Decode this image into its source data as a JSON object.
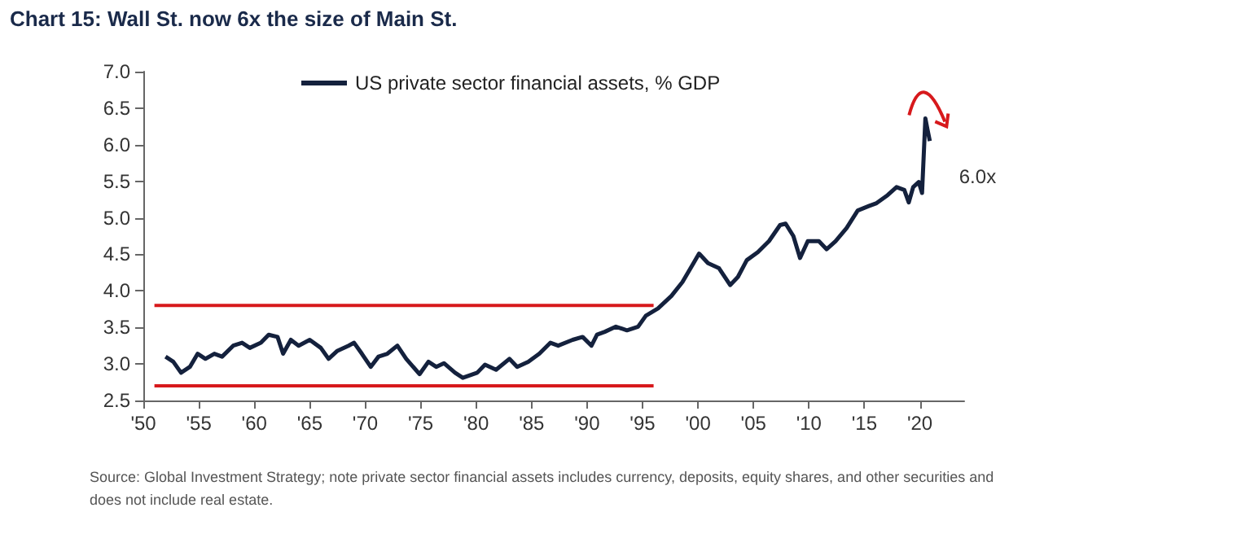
{
  "chart_data": {
    "type": "line",
    "title": "Chart 15: Wall St. now 6x the size of Main St.",
    "legend": "top",
    "grid": false,
    "marker": "none",
    "line_style": "solid",
    "xlim": [
      1950,
      2024
    ],
    "xticks": [
      {
        "value": 1950,
        "label": "'50"
      },
      {
        "value": 1955,
        "label": "'55"
      },
      {
        "value": 1960,
        "label": "'60"
      },
      {
        "value": 1965,
        "label": "'65"
      },
      {
        "value": 1970,
        "label": "'70"
      },
      {
        "value": 1975,
        "label": "'75"
      },
      {
        "value": 1980,
        "label": "'80"
      },
      {
        "value": 1985,
        "label": "'85"
      },
      {
        "value": 1990,
        "label": "'90"
      },
      {
        "value": 1995,
        "label": "'95"
      },
      {
        "value": 2000,
        "label": "'00"
      },
      {
        "value": 2005,
        "label": "'05"
      },
      {
        "value": 2010,
        "label": "'10"
      },
      {
        "value": 2015,
        "label": "'15"
      },
      {
        "value": 2020,
        "label": "'20"
      }
    ],
    "ylim": [
      2.5,
      7.0
    ],
    "yticks": [
      {
        "value": 2.5,
        "label": "2.5"
      },
      {
        "value": 3,
        "label": "3.0"
      },
      {
        "value": 3.5,
        "label": "3.5"
      },
      {
        "value": 4,
        "label": "4.0"
      },
      {
        "value": 4.5,
        "label": "4.5"
      },
      {
        "value": 5,
        "label": "5.0"
      },
      {
        "value": 5.5,
        "label": "5.5"
      },
      {
        "value": 6,
        "label": "6.0"
      },
      {
        "value": 6.5,
        "label": "6.5"
      },
      {
        "value": 7,
        "label": "7.0"
      }
    ],
    "series": [
      {
        "name": "US private sector financial assets, % GDP",
        "color": "#14213d",
        "x": [
          1952.0,
          1952.7,
          1953.4,
          1954.2,
          1954.9,
          1955.6,
          1956.4,
          1957.1,
          1958.1,
          1958.9,
          1959.6,
          1960.6,
          1961.3,
          1962.1,
          1962.6,
          1963.3,
          1964.0,
          1965.0,
          1966.0,
          1966.7,
          1967.5,
          1968.5,
          1969.0,
          1969.7,
          1970.5,
          1971.2,
          1972.0,
          1972.9,
          1973.7,
          1974.9,
          1975.7,
          1976.4,
          1977.1,
          1978.1,
          1978.8,
          1980.1,
          1980.8,
          1981.8,
          1983.0,
          1983.7,
          1984.7,
          1985.7,
          1986.7,
          1987.4,
          1988.7,
          1989.6,
          1990.4,
          1990.9,
          1991.6,
          1992.6,
          1993.6,
          1994.6,
          1995.3,
          1996.4,
          1997.6,
          1998.6,
          1999.6,
          2000.1,
          2000.9,
          2001.9,
          2002.9,
          2003.6,
          2004.4,
          2005.4,
          2006.4,
          2007.4,
          2007.9,
          2008.6,
          2009.2,
          2009.9,
          2010.9,
          2011.6,
          2012.4,
          2013.4,
          2014.4,
          2015.4,
          2016.1,
          2017.1,
          2017.9,
          2018.6,
          2019.0,
          2019.4,
          2019.9,
          2020.2,
          2020.5,
          2020.7,
          2020.9
        ],
        "values": [
          3.1,
          3.03,
          2.88,
          2.96,
          3.14,
          3.07,
          3.14,
          3.1,
          3.25,
          3.29,
          3.22,
          3.29,
          3.4,
          3.37,
          3.14,
          3.33,
          3.25,
          3.33,
          3.22,
          3.07,
          3.18,
          3.25,
          3.29,
          3.14,
          2.96,
          3.1,
          3.14,
          3.25,
          3.07,
          2.86,
          3.03,
          2.96,
          3.01,
          2.88,
          2.81,
          2.88,
          2.99,
          2.92,
          3.07,
          2.96,
          3.03,
          3.14,
          3.29,
          3.25,
          3.33,
          3.37,
          3.25,
          3.4,
          3.44,
          3.51,
          3.46,
          3.51,
          3.66,
          3.76,
          3.93,
          4.12,
          4.38,
          4.51,
          4.38,
          4.31,
          4.08,
          4.19,
          4.42,
          4.53,
          4.68,
          4.9,
          4.92,
          4.75,
          4.45,
          4.68,
          4.68,
          4.57,
          4.68,
          4.86,
          5.1,
          5.16,
          5.2,
          5.31,
          5.42,
          5.38,
          5.21,
          5.42,
          5.49,
          5.34,
          6.36,
          6.2,
          6.05
        ]
      },
      {
        "color": "#d7191c",
        "x": [
          1951,
          1996
        ],
        "values": [
          3.8,
          3.8
        ]
      },
      {
        "color": "#d7191c",
        "x": [
          1951,
          1996
        ],
        "values": [
          2.7,
          2.7
        ]
      }
    ],
    "annotations": [
      "6.0x",
      "Source: Global Investment Strategy; note private sector financial assets includes currency, deposits, equity shares, and other securities and does not include real estate."
    ]
  }
}
